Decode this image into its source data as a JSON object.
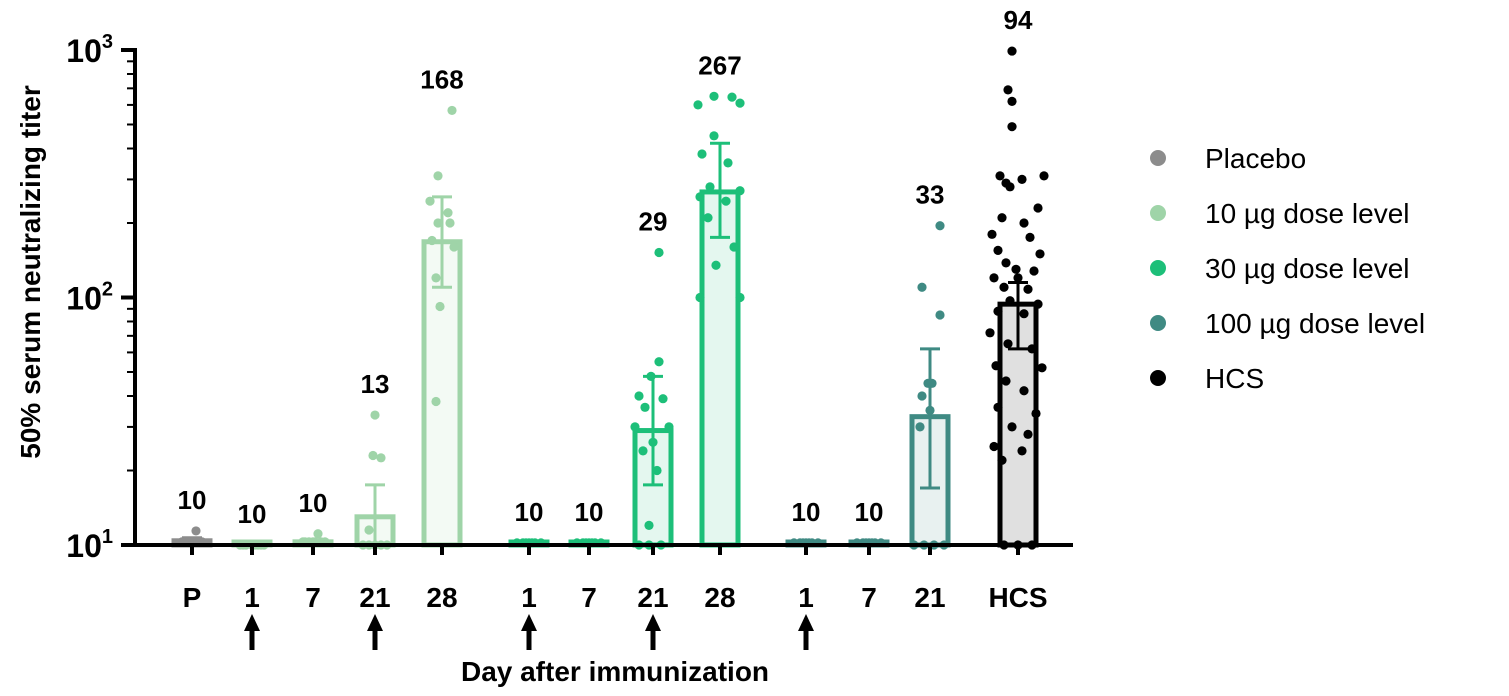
{
  "chart_data": {
    "type": "bar",
    "ylabel": "50% serum neutralizing titer",
    "xlabel": "Day after immunization",
    "yscale": "log",
    "ylim": [
      10,
      1000
    ],
    "yticks": [
      {
        "value": 10,
        "base": "10",
        "exp": "1"
      },
      {
        "value": 100,
        "base": "10",
        "exp": "2"
      },
      {
        "value": 1000,
        "base": "10",
        "exp": "3"
      }
    ],
    "legend_position": "right",
    "series": [
      {
        "name": "Placebo",
        "color": "#8c8c8c"
      },
      {
        "name": "10 µg dose level",
        "color": "#9fd4a8"
      },
      {
        "name": "30 µg dose level",
        "color": "#1dbf79"
      },
      {
        "name": "100 µg dose level",
        "color": "#3f8a83"
      },
      {
        "name": "HCS",
        "color": "#000000"
      }
    ],
    "bars": [
      {
        "category": "P",
        "series": 0,
        "value": 10.4,
        "label": "10",
        "ci": [
          10.2,
          10.7
        ],
        "dose": false,
        "points": [
          [
            -6,
            10.3
          ],
          [
            0,
            10.3
          ],
          [
            6,
            10.3
          ],
          [
            -10,
            10.3
          ],
          [
            10,
            10.3
          ],
          [
            4,
            11.4
          ],
          [
            -3,
            10.3
          ],
          [
            8,
            10.3
          ]
        ]
      },
      {
        "category": "1",
        "series": 1,
        "value": 10,
        "label": "10",
        "ci": null,
        "dose": true,
        "points": [
          [
            -12,
            10
          ],
          [
            -6,
            10
          ],
          [
            0,
            10
          ],
          [
            6,
            10
          ],
          [
            12,
            10
          ],
          [
            -9,
            10
          ],
          [
            9,
            10
          ],
          [
            3,
            10
          ]
        ]
      },
      {
        "category": "7",
        "series": 1,
        "value": 10.3,
        "label": "10",
        "ci": [
          10.1,
          10.5
        ],
        "dose": false,
        "points": [
          [
            -10,
            10.3
          ],
          [
            -4,
            10.3
          ],
          [
            2,
            10.3
          ],
          [
            8,
            10.3
          ],
          [
            12,
            10.3
          ],
          [
            5,
            11.1
          ],
          [
            -8,
            10.3
          ],
          [
            0,
            10.3
          ]
        ]
      },
      {
        "category": "21",
        "series": 1,
        "value": 13,
        "label": "13",
        "ci": [
          10,
          17.5
        ],
        "dose": true,
        "points": [
          [
            0,
            33.5
          ],
          [
            -2,
            23
          ],
          [
            6,
            22.5
          ],
          [
            -6,
            11.5
          ],
          [
            -12,
            10
          ],
          [
            -6,
            10
          ],
          [
            0,
            10
          ],
          [
            6,
            10
          ],
          [
            12,
            10
          ]
        ]
      },
      {
        "category": "28",
        "series": 1,
        "value": 168,
        "label": "168",
        "ci": [
          110,
          255
        ],
        "dose": false,
        "points": [
          [
            10,
            570
          ],
          [
            -4,
            310
          ],
          [
            -12,
            245
          ],
          [
            6,
            220
          ],
          [
            -4,
            200
          ],
          [
            8,
            200
          ],
          [
            -10,
            170
          ],
          [
            12,
            160
          ],
          [
            -6,
            120
          ],
          [
            -2,
            92
          ],
          [
            -6,
            38
          ]
        ]
      },
      {
        "category": "1",
        "series": 2,
        "value": 10.2,
        "label": "10",
        "ci": null,
        "dose": true,
        "points": [
          [
            -12,
            10.2
          ],
          [
            -6,
            10.2
          ],
          [
            0,
            10.2
          ],
          [
            6,
            10.2
          ],
          [
            12,
            10.2
          ],
          [
            -3,
            10.2
          ],
          [
            3,
            10.2
          ]
        ]
      },
      {
        "category": "7",
        "series": 2,
        "value": 10.2,
        "label": "10",
        "ci": null,
        "dose": false,
        "points": [
          [
            -12,
            10.2
          ],
          [
            -6,
            10.2
          ],
          [
            0,
            10.2
          ],
          [
            6,
            10.2
          ],
          [
            12,
            10.2
          ],
          [
            -3,
            10.2
          ],
          [
            3,
            10.2
          ]
        ]
      },
      {
        "category": "21",
        "series": 2,
        "value": 29,
        "label": "29",
        "ci": [
          17.5,
          48
        ],
        "dose": true,
        "points": [
          [
            6,
            152
          ],
          [
            6,
            55
          ],
          [
            -2,
            48
          ],
          [
            -14,
            40
          ],
          [
            10,
            39
          ],
          [
            -8,
            36
          ],
          [
            -18,
            30
          ],
          [
            16,
            30
          ],
          [
            0,
            26
          ],
          [
            -10,
            24
          ],
          [
            4,
            20
          ],
          [
            -4,
            12
          ],
          [
            -14,
            10
          ],
          [
            -4,
            10
          ],
          [
            8,
            10
          ]
        ]
      },
      {
        "category": "28",
        "series": 2,
        "value": 267,
        "label": "267",
        "ci": [
          175,
          420
        ],
        "dose": false,
        "points": [
          [
            -6,
            650
          ],
          [
            12,
            645
          ],
          [
            20,
            610
          ],
          [
            -22,
            600
          ],
          [
            -6,
            450
          ],
          [
            -18,
            380
          ],
          [
            8,
            350
          ],
          [
            -10,
            280
          ],
          [
            20,
            270
          ],
          [
            -20,
            255
          ],
          [
            6,
            245
          ],
          [
            -12,
            210
          ],
          [
            14,
            160
          ],
          [
            -4,
            135
          ],
          [
            -20,
            100
          ],
          [
            20,
            100
          ]
        ]
      },
      {
        "category": "1",
        "series": 3,
        "value": 10.2,
        "label": "10",
        "ci": null,
        "dose": true,
        "points": [
          [
            -12,
            10.2
          ],
          [
            -6,
            10.2
          ],
          [
            0,
            10.2
          ],
          [
            6,
            10.2
          ],
          [
            12,
            10.2
          ],
          [
            -3,
            10.2
          ],
          [
            3,
            10.2
          ]
        ]
      },
      {
        "category": "7",
        "series": 3,
        "value": 10.2,
        "label": "10",
        "ci": null,
        "dose": false,
        "points": [
          [
            -12,
            10.2
          ],
          [
            -6,
            10.2
          ],
          [
            0,
            10.2
          ],
          [
            6,
            10.2
          ],
          [
            12,
            10.2
          ],
          [
            -3,
            10.2
          ],
          [
            3,
            10.2
          ]
        ]
      },
      {
        "category": "21",
        "series": 3,
        "value": 33,
        "label": "33",
        "ci": [
          17,
          62
        ],
        "dose": false,
        "points": [
          [
            10,
            195
          ],
          [
            -8,
            110
          ],
          [
            10,
            85
          ],
          [
            -2,
            45
          ],
          [
            2,
            45
          ],
          [
            -8,
            40
          ],
          [
            0,
            35
          ],
          [
            -10,
            30
          ],
          [
            -16,
            10
          ],
          [
            -6,
            10
          ],
          [
            4,
            10
          ],
          [
            14,
            10
          ]
        ]
      },
      {
        "category": "HCS",
        "series": 4,
        "value": 94,
        "label": "94",
        "ci": [
          62,
          115
        ],
        "dose": false,
        "points": [
          [
            -6,
            990
          ],
          [
            -10,
            690
          ],
          [
            -6,
            620
          ],
          [
            -6,
            490
          ],
          [
            -18,
            310
          ],
          [
            26,
            310
          ],
          [
            -12,
            290
          ],
          [
            4,
            300
          ],
          [
            -8,
            280
          ],
          [
            20,
            230
          ],
          [
            -16,
            210
          ],
          [
            6,
            200
          ],
          [
            -26,
            180
          ],
          [
            12,
            175
          ],
          [
            -20,
            155
          ],
          [
            22,
            150
          ],
          [
            -12,
            138
          ],
          [
            -2,
            130
          ],
          [
            16,
            128
          ],
          [
            -24,
            120
          ],
          [
            0,
            120
          ],
          [
            -14,
            110
          ],
          [
            10,
            108
          ],
          [
            -8,
            97
          ],
          [
            20,
            94
          ],
          [
            -20,
            88
          ],
          [
            6,
            86
          ],
          [
            -28,
            72
          ],
          [
            -10,
            65
          ],
          [
            14,
            62
          ],
          [
            -22,
            53
          ],
          [
            24,
            52
          ],
          [
            -12,
            46
          ],
          [
            6,
            42
          ],
          [
            -20,
            36
          ],
          [
            18,
            34
          ],
          [
            -6,
            30
          ],
          [
            10,
            28
          ],
          [
            -24,
            25
          ],
          [
            4,
            24
          ],
          [
            -16,
            22
          ],
          [
            -14,
            10
          ],
          [
            0,
            10
          ],
          [
            14,
            10
          ]
        ]
      }
    ]
  }
}
